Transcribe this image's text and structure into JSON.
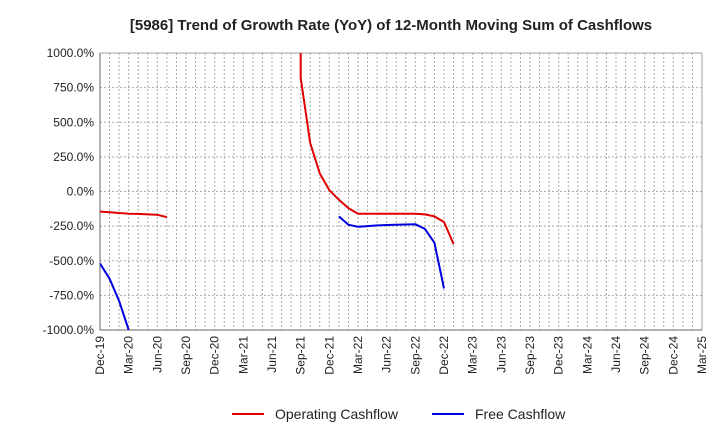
{
  "chart_data": {
    "type": "line",
    "title": "[5986]  Trend of Growth Rate (YoY) of 12-Month Moving Sum of Cashflows",
    "xlabel": "",
    "ylabel": "",
    "ylim": [
      -1000,
      1000
    ],
    "yticks": [
      1000,
      750,
      500,
      250,
      0,
      -250,
      -500,
      -750,
      -1000
    ],
    "ytick_labels": [
      "1000.0%",
      "750.0%",
      "500.0%",
      "250.0%",
      "0.0%",
      "-250.0%",
      "-500.0%",
      "-750.0%",
      "-1000.0%"
    ],
    "x_months": [
      "2019-12",
      "2020-01",
      "2020-02",
      "2020-03",
      "2020-04",
      "2020-05",
      "2020-06",
      "2020-07",
      "2020-08",
      "2020-09",
      "2020-10",
      "2020-11",
      "2020-12",
      "2021-01",
      "2021-02",
      "2021-03",
      "2021-04",
      "2021-05",
      "2021-06",
      "2021-07",
      "2021-08",
      "2021-09",
      "2021-10",
      "2021-11",
      "2021-12",
      "2022-01",
      "2022-02",
      "2022-03",
      "2022-04",
      "2022-05",
      "2022-06",
      "2022-07",
      "2022-08",
      "2022-09",
      "2022-10",
      "2022-11",
      "2022-12",
      "2023-01",
      "2023-02",
      "2023-03",
      "2023-04",
      "2023-05",
      "2023-06",
      "2023-07",
      "2023-08",
      "2023-09",
      "2023-10",
      "2023-11",
      "2023-12",
      "2024-01",
      "2024-02",
      "2024-03",
      "2024-04",
      "2024-05",
      "2024-06",
      "2024-07",
      "2024-08",
      "2024-09",
      "2024-10",
      "2024-11",
      "2024-12",
      "2025-01",
      "2025-02",
      "2025-03"
    ],
    "xtick_labels": [
      "Dec-19",
      "Mar-20",
      "Jun-20",
      "Sep-20",
      "Dec-20",
      "Mar-21",
      "Jun-21",
      "Sep-21",
      "Dec-21",
      "Mar-22",
      "Jun-22",
      "Sep-22",
      "Dec-22",
      "Mar-23",
      "Jun-23",
      "Sep-23",
      "Dec-23",
      "Mar-24",
      "Jun-24",
      "Sep-24",
      "Dec-24",
      "Mar-25"
    ],
    "grid": true,
    "legend_position": "bottom",
    "series": [
      {
        "name": "Operating Cashflow",
        "color": "#e00000",
        "points": [
          [
            "2019-12",
            -145
          ],
          [
            "2020-01",
            -150
          ],
          [
            "2020-02",
            -155
          ],
          [
            "2020-03",
            -160
          ],
          [
            "2020-04",
            -162
          ],
          [
            "2020-05",
            -165
          ],
          [
            "2020-06",
            -168
          ],
          [
            "2020-07",
            -185
          ],
          [
            "2021-09",
            1000
          ],
          [
            "2021-09",
            820
          ],
          [
            "2021-10",
            350
          ],
          [
            "2021-11",
            130
          ],
          [
            "2021-12",
            10
          ],
          [
            "2022-01",
            -60
          ],
          [
            "2022-02",
            -120
          ],
          [
            "2022-03",
            -160
          ],
          [
            "2022-04",
            -160
          ],
          [
            "2022-05",
            -160
          ],
          [
            "2022-06",
            -160
          ],
          [
            "2022-07",
            -160
          ],
          [
            "2022-08",
            -160
          ],
          [
            "2022-09",
            -160
          ],
          [
            "2022-10",
            -165
          ],
          [
            "2022-11",
            -180
          ],
          [
            "2022-12",
            -220
          ],
          [
            "2023-01",
            -380
          ]
        ],
        "gap_after_index": 7
      },
      {
        "name": "Free Cashflow",
        "color": "#0000dd",
        "points": [
          [
            "2019-12",
            -520
          ],
          [
            "2020-01",
            -630
          ],
          [
            "2020-02",
            -790
          ],
          [
            "2020-03",
            -1000
          ],
          [
            "2022-01",
            -180
          ],
          [
            "2022-02",
            -240
          ],
          [
            "2022-03",
            -255
          ],
          [
            "2022-04",
            -250
          ],
          [
            "2022-05",
            -245
          ],
          [
            "2022-06",
            -242
          ],
          [
            "2022-07",
            -240
          ],
          [
            "2022-08",
            -238
          ],
          [
            "2022-09",
            -236
          ],
          [
            "2022-10",
            -270
          ],
          [
            "2022-11",
            -370
          ],
          [
            "2022-12",
            -700
          ]
        ],
        "gap_after_index": 3
      }
    ]
  }
}
